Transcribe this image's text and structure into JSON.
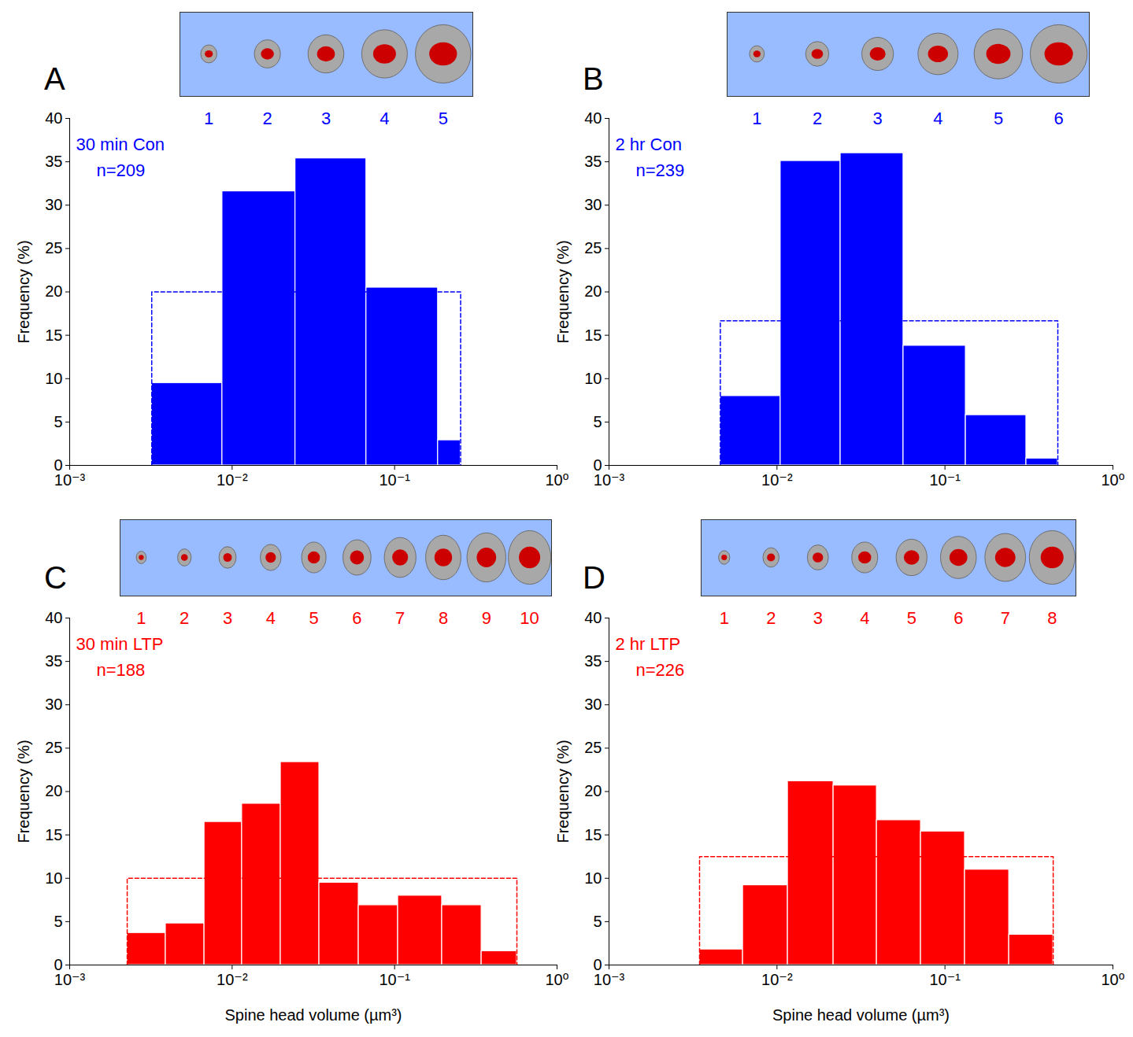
{
  "chart_data": [
    {
      "type": "histogram",
      "panel": "A",
      "title": "30 min Con",
      "subtitle": "n=209",
      "bins": [
        0.0032,
        0.0087,
        0.0245,
        0.067,
        0.185,
        0.255
      ],
      "values": [
        9.5,
        31.6,
        35.4,
        20.5,
        2.9
      ],
      "uniform_level": 20,
      "color": "#0000ff",
      "spine_examples": [
        1,
        2,
        3,
        4,
        5
      ],
      "ylabel": "Frequency (%)",
      "log": "x",
      "xlim": [
        0.001,
        1
      ],
      "ylim": [
        0,
        40
      ],
      "xticks": [
        {
          "value": 0.001,
          "label": "10⁻³"
        },
        {
          "value": 0.01,
          "label": "10⁻²"
        },
        {
          "value": 0.1,
          "label": "10⁻¹"
        },
        {
          "value": 1,
          "label": "10⁰"
        }
      ],
      "yticks": [
        0,
        5,
        10,
        15,
        20,
        25,
        30,
        35,
        40
      ]
    },
    {
      "type": "histogram",
      "panel": "B",
      "title": "2 hr Con",
      "subtitle": "n=239",
      "bins": [
        0.0046,
        0.0105,
        0.0239,
        0.0566,
        0.133,
        0.305,
        0.47
      ],
      "values": [
        8,
        35.1,
        36,
        13.8,
        5.8,
        0.8
      ],
      "uniform_level": 16.67,
      "color": "#0000ff",
      "spine_examples": [
        1,
        2,
        3,
        4,
        5,
        6
      ],
      "ylabel": "Frequency (%)",
      "log": "x",
      "xlim": [
        0.001,
        1
      ],
      "ylim": [
        0,
        40
      ],
      "xticks": [
        {
          "value": 0.001,
          "label": "10⁻³"
        },
        {
          "value": 0.01,
          "label": "10⁻²"
        },
        {
          "value": 0.1,
          "label": "10⁻¹"
        },
        {
          "value": 1,
          "label": "10⁰"
        }
      ],
      "yticks": [
        0,
        5,
        10,
        15,
        20,
        25,
        30,
        35,
        40
      ]
    },
    {
      "type": "histogram",
      "panel": "C",
      "title": "30 min LTP",
      "subtitle": "n=188",
      "bins": [
        0.00226,
        0.0039,
        0.00675,
        0.0115,
        0.0199,
        0.0344,
        0.0601,
        0.105,
        0.196,
        0.343,
        0.566
      ],
      "values": [
        3.7,
        4.8,
        16.5,
        18.6,
        23.4,
        9.5,
        6.9,
        8,
        6.9,
        1.6
      ],
      "uniform_level": 10,
      "color": "#ff0000",
      "spine_examples": [
        1,
        2,
        3,
        4,
        5,
        6,
        7,
        8,
        9,
        10
      ],
      "xlabel": "Spine head volume (µm³)",
      "ylabel": "Frequency (%)",
      "log": "x",
      "xlim": [
        0.001,
        1
      ],
      "ylim": [
        0,
        40
      ],
      "xticks": [
        {
          "value": 0.001,
          "label": "10⁻³"
        },
        {
          "value": 0.01,
          "label": "10⁻²"
        },
        {
          "value": 0.1,
          "label": "10⁻¹"
        },
        {
          "value": 1,
          "label": "10⁰"
        }
      ],
      "yticks": [
        0,
        5,
        10,
        15,
        20,
        25,
        30,
        35,
        40
      ]
    },
    {
      "type": "histogram",
      "panel": "D",
      "title": "2 hr LTP",
      "subtitle": "n=226",
      "bins": [
        0.00346,
        0.00627,
        0.0116,
        0.0217,
        0.0393,
        0.0719,
        0.1315,
        0.241,
        0.441
      ],
      "values": [
        1.8,
        9.2,
        21.2,
        20.7,
        16.7,
        15.4,
        11,
        3.5
      ],
      "uniform_level": 12.5,
      "color": "#ff0000",
      "spine_examples": [
        1,
        2,
        3,
        4,
        5,
        6,
        7,
        8
      ],
      "xlabel": "Spine head volume (µm³)",
      "ylabel": "Frequency (%)",
      "log": "x",
      "xlim": [
        0.001,
        1
      ],
      "ylim": [
        0,
        40
      ],
      "xticks": [
        {
          "value": 0.001,
          "label": "10⁻³"
        },
        {
          "value": 0.01,
          "label": "10⁻²"
        },
        {
          "value": 0.1,
          "label": "10⁻¹"
        },
        {
          "value": 1,
          "label": "10⁰"
        }
      ],
      "yticks": [
        0,
        5,
        10,
        15,
        20,
        25,
        30,
        35,
        40
      ]
    }
  ]
}
